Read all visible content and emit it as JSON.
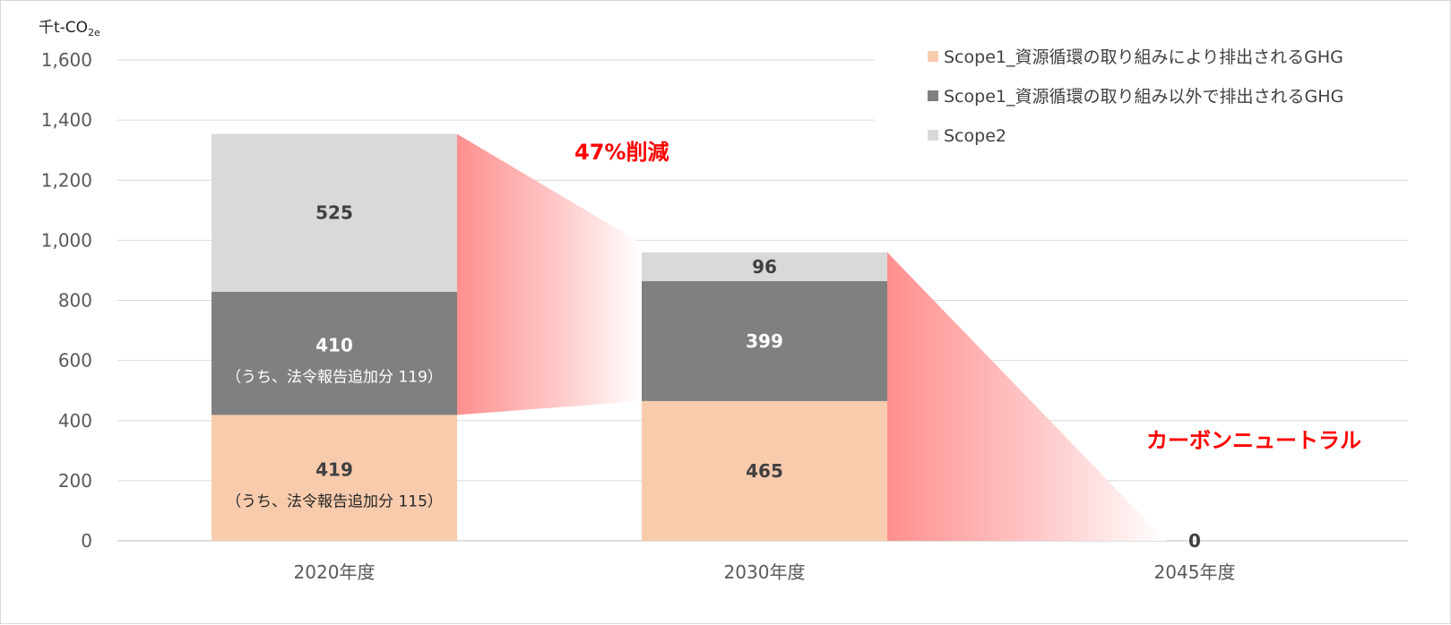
{
  "chart_data": {
    "type": "bar",
    "stacked": true,
    "unit_label": "千t-CO",
    "unit_subscript": "2e",
    "categories": [
      "2020年度",
      "2030年度",
      "2045年度"
    ],
    "ylim": [
      0,
      1600
    ],
    "y_ticks": [
      "0",
      "200",
      "400",
      "600",
      "800",
      "1,000",
      "1,200",
      "1,400",
      "1,600"
    ],
    "grid": true,
    "legend_position": "top-right",
    "series": [
      {
        "name": "Scope1_資源循環の取り組みにより排出されるGHG",
        "color": "#f8cbad",
        "values": [
          419,
          465,
          0
        ]
      },
      {
        "name": "Scope1_資源循環の取り組み以外で排出されるGHG",
        "color": "#808080",
        "values": [
          410,
          399,
          0
        ]
      },
      {
        "name": "Scope2",
        "color": "#d9d9d9",
        "values": [
          525,
          96,
          0
        ]
      }
    ],
    "data_labels": [
      [
        "419",
        "465",
        "0"
      ],
      [
        "410",
        "399",
        ""
      ],
      [
        "525",
        "96",
        ""
      ]
    ],
    "sub_labels": [
      [
        "（うち、法令報告追加分 115）",
        "",
        ""
      ],
      [
        "（うち、法令報告追加分 119）",
        "",
        ""
      ],
      [
        "",
        "",
        ""
      ]
    ],
    "annotations": [
      {
        "text": "47%削減",
        "color": "#ff0000"
      },
      {
        "text": "カーボンニュートラル",
        "color": "#ff0000"
      }
    ]
  }
}
